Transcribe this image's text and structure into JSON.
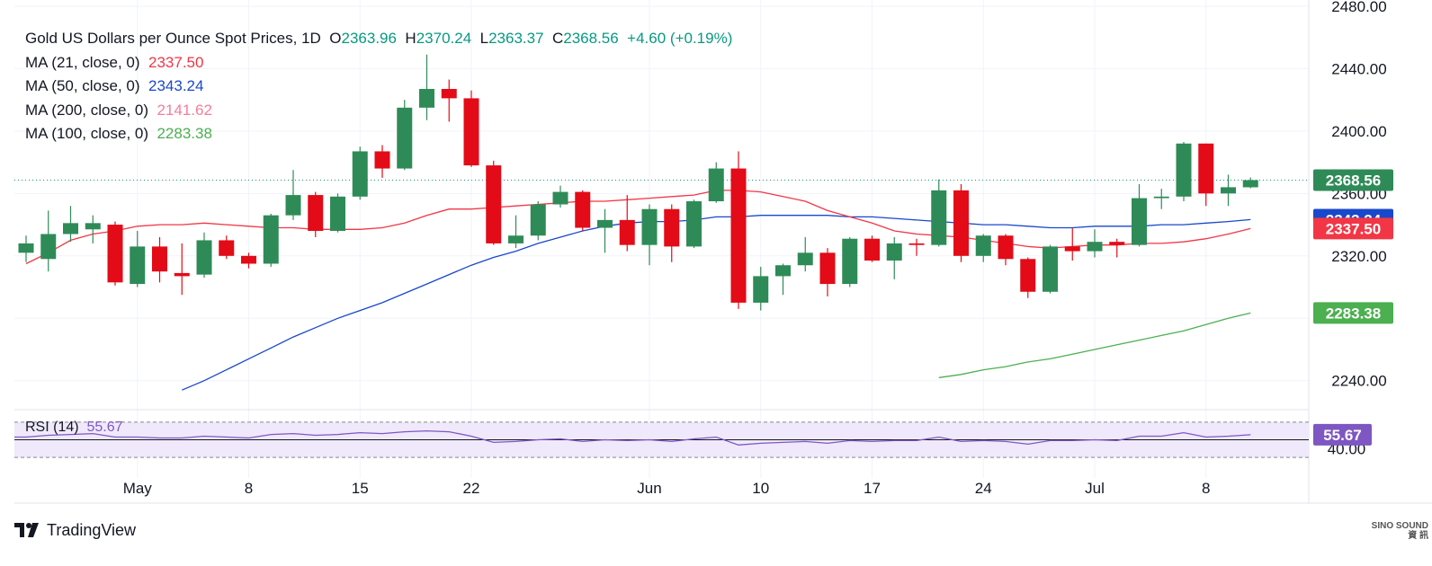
{
  "legend": {
    "title": "Gold US Dollars per Ounce Spot Prices, 1D",
    "ohlc": {
      "o_label": "O",
      "o": "2363.96",
      "h_label": "H",
      "h": "2370.24",
      "l_label": "L",
      "l": "2363.37",
      "c_label": "C",
      "c": "2368.56",
      "change": "+4.60 (+0.19%)"
    },
    "ma": [
      {
        "label": "MA (21, close, 0)",
        "value": "2337.50",
        "color": "#f23645"
      },
      {
        "label": "MA (50, close, 0)",
        "value": "2343.24",
        "color": "#1848cc"
      },
      {
        "label": "MA (200, close, 0)",
        "value": "2141.62",
        "color": "#f77c9a"
      },
      {
        "label": "MA (100, close, 0)",
        "value": "2283.38",
        "color": "#4caf50"
      }
    ],
    "rsi_label": "RSI (14)",
    "rsi_value": "55.67"
  },
  "footer": {
    "brand": "TradingView",
    "watermark_line1": "SINO SOUND",
    "watermark_line2": "資 訊"
  },
  "colors": {
    "up": "#2e8b57",
    "down": "#e30b17",
    "rsi_line": "#7e57c2",
    "rsi_band": "#efe9fb",
    "close_line": "#089981"
  },
  "chart_data": {
    "type": "candlestick",
    "title": "Gold US Dollars per Ounce Spot Prices, 1D",
    "ylim": [
      2222,
      2484
    ],
    "yticks": [
      2240,
      2280,
      2320,
      2360,
      2400,
      2440,
      2480
    ],
    "ytick_labels": [
      "2240.00",
      "",
      "2320.00",
      "2360.00",
      "2400.00",
      "2440.00",
      "2480.00"
    ],
    "xtick_labels": [
      {
        "label": "May",
        "i": 5
      },
      {
        "label": "8",
        "i": 10
      },
      {
        "label": "15",
        "i": 15
      },
      {
        "label": "22",
        "i": 20
      },
      {
        "label": "Jun",
        "i": 28
      },
      {
        "label": "10",
        "i": 33
      },
      {
        "label": "17",
        "i": 38
      },
      {
        "label": "22",
        "i": 0,
        "hidden": true
      },
      {
        "label": "24",
        "i": 43
      },
      {
        "label": "Jul",
        "i": 48
      },
      {
        "label": "8",
        "i": 53
      }
    ],
    "candles": [
      {
        "o": 2322,
        "h": 2333,
        "l": 2316,
        "c": 2328
      },
      {
        "o": 2318,
        "h": 2349,
        "l": 2310,
        "c": 2334
      },
      {
        "o": 2334,
        "h": 2352,
        "l": 2329,
        "c": 2341
      },
      {
        "o": 2337,
        "h": 2346,
        "l": 2328,
        "c": 2341
      },
      {
        "o": 2340,
        "h": 2342,
        "l": 2301,
        "c": 2303
      },
      {
        "o": 2302,
        "h": 2336,
        "l": 2300,
        "c": 2326
      },
      {
        "o": 2326,
        "h": 2332,
        "l": 2303,
        "c": 2310
      },
      {
        "o": 2309,
        "h": 2328,
        "l": 2295,
        "c": 2307
      },
      {
        "o": 2308,
        "h": 2335,
        "l": 2306,
        "c": 2330
      },
      {
        "o": 2330,
        "h": 2333,
        "l": 2318,
        "c": 2320
      },
      {
        "o": 2320,
        "h": 2322,
        "l": 2312,
        "c": 2315
      },
      {
        "o": 2315,
        "h": 2347,
        "l": 2313,
        "c": 2346
      },
      {
        "o": 2346,
        "h": 2375,
        "l": 2343,
        "c": 2359
      },
      {
        "o": 2359,
        "h": 2361,
        "l": 2332,
        "c": 2336
      },
      {
        "o": 2336,
        "h": 2360,
        "l": 2335,
        "c": 2358
      },
      {
        "o": 2358,
        "h": 2390,
        "l": 2356,
        "c": 2387
      },
      {
        "o": 2387,
        "h": 2391,
        "l": 2370,
        "c": 2376
      },
      {
        "o": 2376,
        "h": 2420,
        "l": 2375,
        "c": 2415
      },
      {
        "o": 2415,
        "h": 2449,
        "l": 2407,
        "c": 2427
      },
      {
        "o": 2427,
        "h": 2433,
        "l": 2406,
        "c": 2421
      },
      {
        "o": 2421,
        "h": 2426,
        "l": 2377,
        "c": 2378
      },
      {
        "o": 2378,
        "h": 2381,
        "l": 2327,
        "c": 2328
      },
      {
        "o": 2328,
        "h": 2346,
        "l": 2325,
        "c": 2333
      },
      {
        "o": 2333,
        "h": 2355,
        "l": 2330,
        "c": 2353
      },
      {
        "o": 2353,
        "h": 2365,
        "l": 2351,
        "c": 2361
      },
      {
        "o": 2361,
        "h": 2362,
        "l": 2336,
        "c": 2338
      },
      {
        "o": 2338,
        "h": 2350,
        "l": 2322,
        "c": 2343
      },
      {
        "o": 2343,
        "h": 2359,
        "l": 2323,
        "c": 2327
      },
      {
        "o": 2327,
        "h": 2353,
        "l": 2314,
        "c": 2350
      },
      {
        "o": 2350,
        "h": 2353,
        "l": 2316,
        "c": 2326
      },
      {
        "o": 2326,
        "h": 2356,
        "l": 2325,
        "c": 2355
      },
      {
        "o": 2355,
        "h": 2380,
        "l": 2354,
        "c": 2376
      },
      {
        "o": 2376,
        "h": 2387,
        "l": 2286,
        "c": 2290
      },
      {
        "o": 2290,
        "h": 2313,
        "l": 2285,
        "c": 2307
      },
      {
        "o": 2307,
        "h": 2315,
        "l": 2295,
        "c": 2314
      },
      {
        "o": 2314,
        "h": 2332,
        "l": 2310,
        "c": 2322
      },
      {
        "o": 2322,
        "h": 2325,
        "l": 2294,
        "c": 2302
      },
      {
        "o": 2302,
        "h": 2332,
        "l": 2300,
        "c": 2331
      },
      {
        "o": 2331,
        "h": 2333,
        "l": 2316,
        "c": 2317
      },
      {
        "o": 2317,
        "h": 2332,
        "l": 2305,
        "c": 2328
      },
      {
        "o": 2328,
        "h": 2331,
        "l": 2320,
        "c": 2327
      },
      {
        "o": 2327,
        "h": 2369,
        "l": 2326,
        "c": 2362
      },
      {
        "o": 2362,
        "h": 2366,
        "l": 2316,
        "c": 2320
      },
      {
        "o": 2320,
        "h": 2334,
        "l": 2316,
        "c": 2333
      },
      {
        "o": 2333,
        "h": 2334,
        "l": 2314,
        "c": 2318
      },
      {
        "o": 2318,
        "h": 2319,
        "l": 2293,
        "c": 2297
      },
      {
        "o": 2297,
        "h": 2327,
        "l": 2296,
        "c": 2326
      },
      {
        "o": 2326,
        "h": 2338,
        "l": 2317,
        "c": 2323
      },
      {
        "o": 2323,
        "h": 2337,
        "l": 2319,
        "c": 2329
      },
      {
        "o": 2329,
        "h": 2331,
        "l": 2319,
        "c": 2327
      },
      {
        "o": 2327,
        "h": 2366,
        "l": 2326,
        "c": 2357
      },
      {
        "o": 2357,
        "h": 2363,
        "l": 2350,
        "c": 2358
      },
      {
        "o": 2358,
        "h": 2393,
        "l": 2355,
        "c": 2392
      },
      {
        "o": 2392,
        "h": 2392,
        "l": 2352,
        "c": 2360
      },
      {
        "o": 2360,
        "h": 2372,
        "l": 2352,
        "c": 2364
      },
      {
        "o": 2363.96,
        "h": 2370.24,
        "l": 2363.37,
        "c": 2368.56
      }
    ],
    "ma21": [
      2315,
      2322,
      2330,
      2334,
      2336,
      2339,
      2340,
      2340,
      2341,
      2340,
      2339,
      2338,
      2338,
      2337,
      2337,
      2337,
      2338,
      2341,
      2346,
      2350,
      2350,
      2351,
      2352,
      2353,
      2354,
      2355,
      2355,
      2356,
      2357,
      2358,
      2359,
      2362,
      2362,
      2361,
      2358,
      2355,
      2349,
      2345,
      2341,
      2336,
      2334,
      2333,
      2332,
      2330,
      2328,
      2326,
      2325,
      2326,
      2327,
      2327,
      2328,
      2328,
      2329,
      2331,
      2334,
      2337.5
    ],
    "ma50": [
      null,
      null,
      null,
      null,
      null,
      null,
      null,
      2234,
      2240,
      2247,
      2254,
      2261,
      2268,
      2274,
      2280,
      2285,
      2290,
      2296,
      2302,
      2308,
      2314,
      2319,
      2323,
      2328,
      2332,
      2336,
      2339,
      2341,
      2342,
      2342,
      2343,
      2345,
      2345,
      2346,
      2346,
      2346,
      2346,
      2345,
      2345,
      2344,
      2343,
      2342,
      2341,
      2340,
      2340,
      2339,
      2338,
      2338,
      2339,
      2339,
      2339,
      2340,
      2340,
      2341,
      2342,
      2343.24
    ],
    "ma100": [
      null,
      null,
      null,
      null,
      null,
      null,
      null,
      null,
      null,
      null,
      null,
      null,
      null,
      null,
      null,
      null,
      null,
      null,
      null,
      null,
      null,
      null,
      null,
      null,
      null,
      null,
      null,
      null,
      null,
      null,
      null,
      null,
      null,
      null,
      null,
      null,
      null,
      null,
      null,
      null,
      null,
      2242,
      2244,
      2247,
      2249,
      2252,
      2254,
      2257,
      2260,
      2263,
      2266,
      2269,
      2272,
      2276,
      2280,
      2283.38
    ],
    "price_labels": [
      {
        "value": 2368.56,
        "text": "2368.56",
        "bg": "#2e8b57"
      },
      {
        "value": 2343.24,
        "text": "2343.24",
        "bg": "#1848cc"
      },
      {
        "value": 2337.5,
        "text": "2337.50",
        "bg": "#f23645"
      },
      {
        "value": 2283.38,
        "text": "2283.38",
        "bg": "#4caf50"
      }
    ],
    "rsi": {
      "ylim": [
        25,
        80
      ],
      "upper": 70,
      "lower": 30,
      "mid": 50,
      "tick_labels": [
        {
          "value": 40,
          "text": "40.00"
        }
      ],
      "values": [
        53,
        55,
        56,
        57,
        53,
        53,
        52,
        52,
        54,
        53,
        52,
        56,
        57,
        55,
        56,
        58,
        57,
        59,
        60,
        59,
        54,
        47,
        48,
        50,
        51,
        48,
        50,
        49,
        50,
        48,
        51,
        53,
        44,
        46,
        47,
        48,
        46,
        49,
        48,
        49,
        49,
        53,
        48,
        49,
        48,
        45,
        49,
        49,
        50,
        49,
        54,
        54,
        58,
        53,
        54,
        55.67
      ],
      "last": {
        "value": 55.67,
        "text": "55.67",
        "bg": "#7e57c2"
      }
    }
  }
}
